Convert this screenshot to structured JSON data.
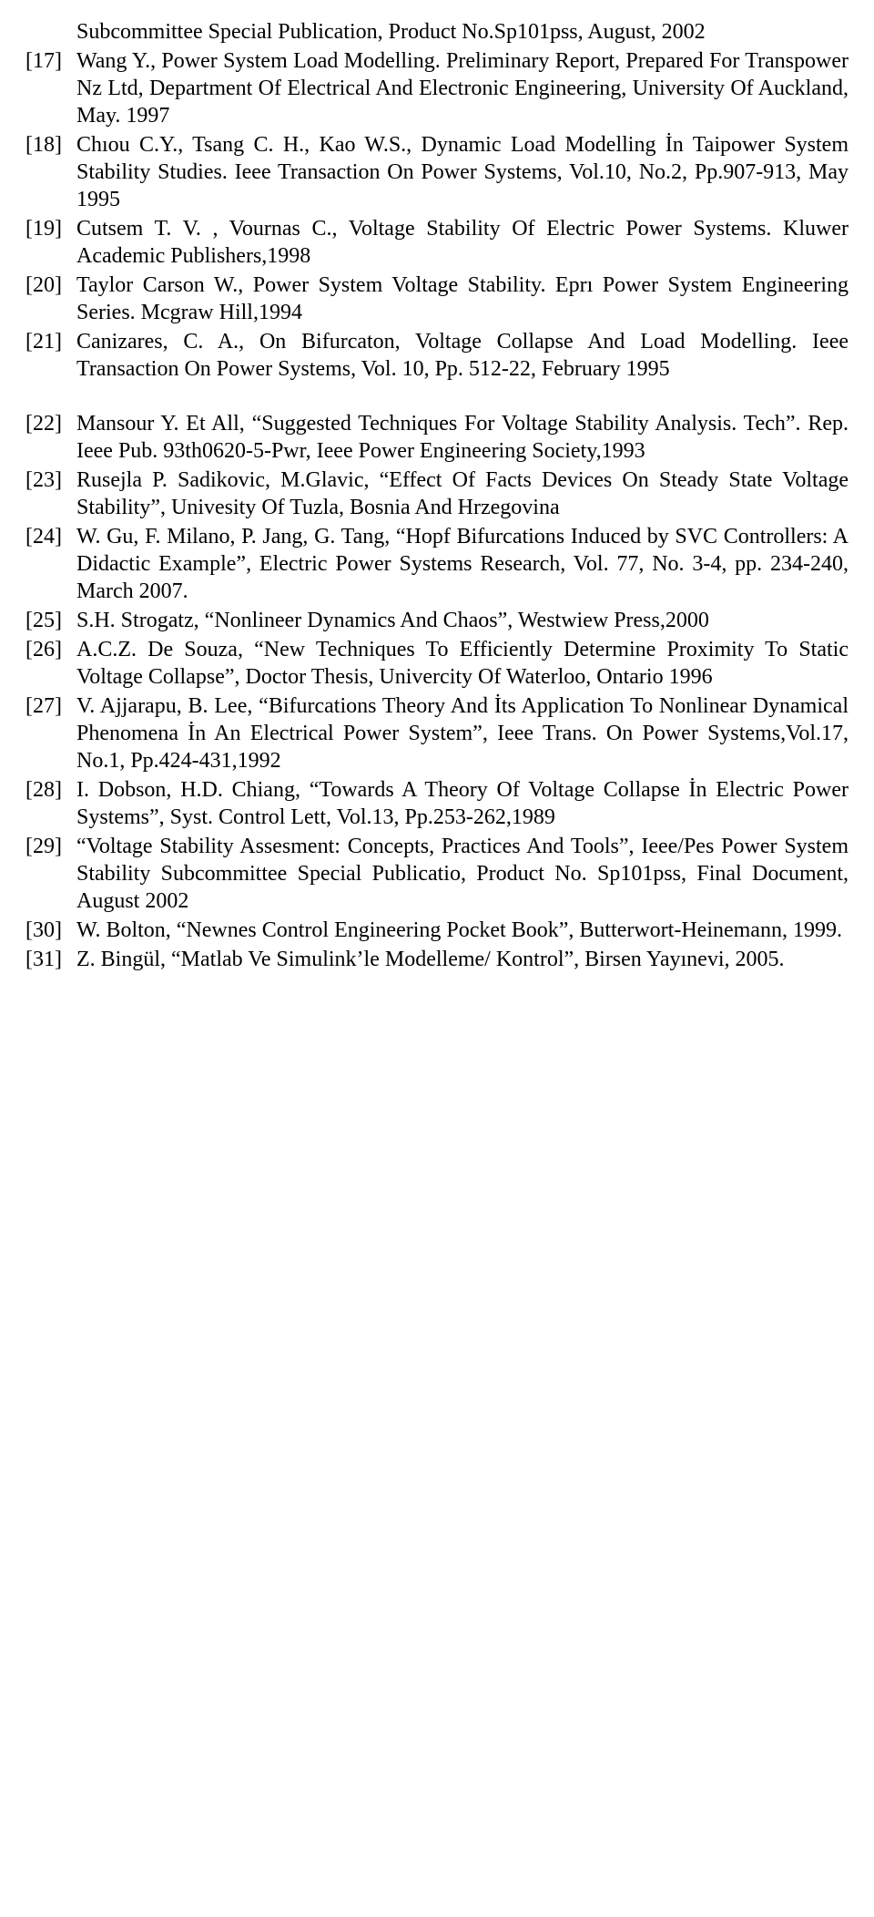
{
  "references": [
    {
      "num": "",
      "body": "Subcommittee Special Publication, Product No.Sp101pss, August, 2002",
      "continuation": true
    },
    {
      "num": "[17]",
      "body": "Wang Y., Power System Load Modelling. Preliminary Report, Prepared For Transpower Nz Ltd, Department Of Electrical And Electronic Engineering, University Of Auckland, May. 1997"
    },
    {
      "num": "[18]",
      "body": "Chıou C.Y., Tsang C. H., Kao W.S., Dynamic Load Modelling İn Taipower System Stability Studies. Ieee Transaction On Power Systems, Vol.10, No.2, Pp.907-913, May 1995"
    },
    {
      "num": "[19]",
      "body": "Cutsem T. V. , Vournas C., Voltage Stability Of Electric Power Systems. Kluwer Academic Publishers,1998"
    },
    {
      "num": "[20]",
      "body": "Taylor Carson W., Power System Voltage Stability. Eprı Power System Engineering Series. Mcgraw Hill,1994"
    },
    {
      "num": "[21]",
      "body": "Canizares, C. A., On Bifurcaton, Voltage Collapse And Load Modelling. Ieee Transaction On Power Systems, Vol. 10, Pp. 512-22, February 1995"
    },
    {
      "num": "[22]",
      "body": "Mansour Y. Et All, “Suggested Techniques For Voltage Stability Analysis. Tech”. Rep. Ieee Pub. 93th0620-5-Pwr, Ieee Power Engineering Society,1993",
      "gapBefore": true
    },
    {
      "num": "[23]",
      "body": "Rusejla P. Sadikovic, M.Glavic, “Effect Of Facts Devices On Steady State Voltage Stability”, Univesity Of Tuzla, Bosnia And Hrzegovina"
    },
    {
      "num": "[24]",
      "body": "W. Gu, F. Milano, P. Jang, G. Tang, “Hopf Bifurcations Induced by SVC Controllers: A Didactic Example”, Electric Power Systems Research, Vol. 77, No. 3-4, pp. 234-240, March 2007."
    },
    {
      "num": "[25]",
      "body": "S.H. Strogatz, “Nonlineer Dynamics And Chaos”, Westwiew Press,2000"
    },
    {
      "num": "[26]",
      "body": "A.C.Z. De Souza, “New Techniques To Efficiently Determine Proximity To Static Voltage Collapse”, Doctor Thesis, Univercity Of Waterloo, Ontario 1996"
    },
    {
      "num": "[27]",
      "body": "V. Ajjarapu, B. Lee, “Bifurcations Theory And İts Application To Nonlinear Dynamical Phenomena İn An Electrical Power System”, Ieee Trans. On Power Systems,Vol.17, No.1, Pp.424-431,1992"
    },
    {
      "num": "[28]",
      "body": "I. Dobson, H.D. Chiang, “Towards A Theory Of Voltage Collapse İn Electric Power Systems”, Syst. Control Lett, Vol.13, Pp.253-262,1989"
    },
    {
      "num": "[29]",
      "body": "“Voltage Stability Assesment: Concepts, Practices And Tools”, Ieee/Pes Power System Stability Subcommittee Special Publicatio, Product No. Sp101pss, Final Document, August 2002"
    },
    {
      "num": "[30]",
      "body": "W. Bolton, “Newnes Control Engineering Pocket Book”, Butterwort-Heinemann, 1999."
    },
    {
      "num": "[31]",
      "body": "Z. Bingül, “Matlab Ve Simulink’le Modelleme/ Kontrol”, Birsen Yayınevi, 2005."
    }
  ]
}
